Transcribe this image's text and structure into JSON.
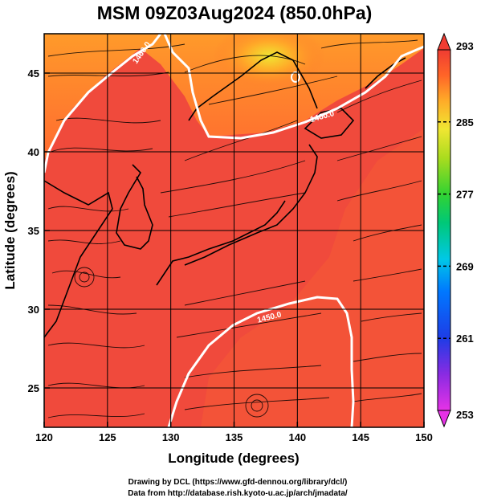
{
  "chart_data": {
    "type": "heatmap",
    "title": "MSM 09Z03Aug2024 (850.0hPa)",
    "xlabel": "Longitude (degrees)",
    "ylabel": "Latitude  (degrees)",
    "xlim": [
      120,
      150
    ],
    "ylim": [
      22.5,
      47.5
    ],
    "x_ticks": [
      120,
      125,
      130,
      135,
      140,
      145,
      150
    ],
    "y_ticks": [
      25,
      30,
      35,
      40,
      45
    ],
    "grid": true,
    "colorbar": {
      "min": 253,
      "max": 293,
      "ticks": [
        253,
        261,
        269,
        277,
        285,
        293
      ],
      "extend": "both",
      "colors": [
        "#e632e6",
        "#8a2be2",
        "#1e3ce6",
        "#0078ff",
        "#00c8e6",
        "#00c878",
        "#32d232",
        "#aadc1e",
        "#f0e632",
        "#ffaa28",
        "#ff6428",
        "#f03c32"
      ]
    },
    "contours": [
      {
        "value": "1460.0",
        "label": "1460.0"
      },
      {
        "value": "1450.0",
        "label": "1450.0"
      }
    ],
    "contour_color": "#ffffff",
    "credits": [
      "Drawing by DCL (https://www.gfd-dennou.org/library/dcl/)",
      "Data from http://database.rish.kyoto-u.ac.jp/arch/jmadata/"
    ]
  }
}
